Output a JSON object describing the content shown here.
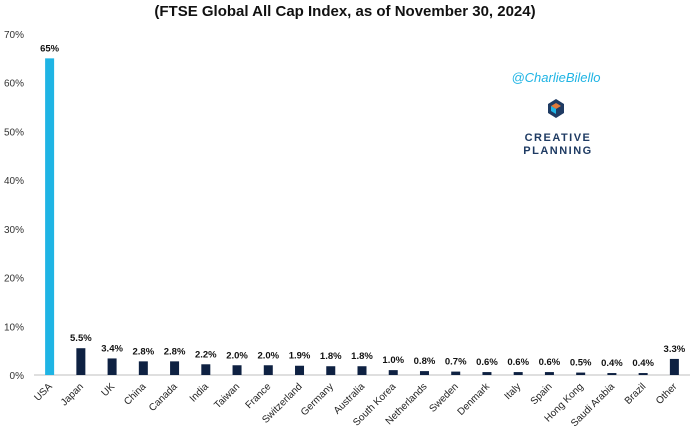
{
  "chart_data": {
    "type": "bar",
    "title": "(FTSE Global All Cap Index, as of November 30, 2024)",
    "categories": [
      "USA",
      "Japan",
      "UK",
      "China",
      "Canada",
      "India",
      "Taiwan",
      "France",
      "Switzerland",
      "Germany",
      "Australia",
      "South Korea",
      "Netherlands",
      "Sweden",
      "Denmark",
      "Italy",
      "Spain",
      "Hong Kong",
      "Saudi Arabia",
      "Brazil",
      "Other"
    ],
    "values": [
      65,
      5.5,
      3.4,
      2.8,
      2.8,
      2.2,
      2.0,
      2.0,
      1.9,
      1.8,
      1.8,
      1.0,
      0.8,
      0.7,
      0.6,
      0.6,
      0.6,
      0.5,
      0.4,
      0.4,
      3.3
    ],
    "labels": [
      "65%",
      "5.5%",
      "3.4%",
      "2.8%",
      "2.8%",
      "2.2%",
      "2.0%",
      "2.0%",
      "1.9%",
      "1.8%",
      "1.8%",
      "1.0%",
      "0.8%",
      "0.7%",
      "0.6%",
      "0.6%",
      "0.6%",
      "0.5%",
      "0.4%",
      "0.4%",
      "3.3%"
    ],
    "yticks": [
      "0%",
      "10%",
      "20%",
      "30%",
      "40%",
      "50%",
      "60%",
      "70%"
    ],
    "ylim": [
      0,
      70
    ],
    "grid": false,
    "xlabel": "",
    "ylabel": "",
    "colors": {
      "highlight": "#1fb4e4",
      "default": "#0e2142"
    }
  },
  "watermark": {
    "handle": "@CharlieBilello",
    "logo_line1": "CREATIVE",
    "logo_line2": "PLANNING"
  }
}
